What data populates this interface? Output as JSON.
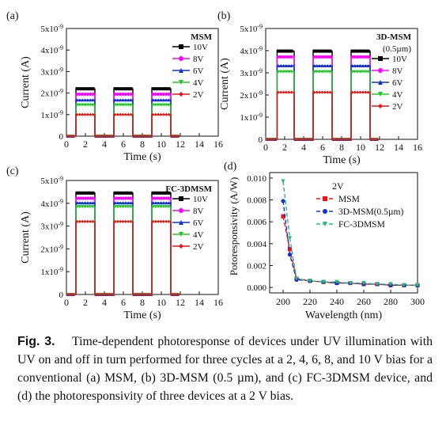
{
  "chart_data": [
    {
      "panel": "(a)",
      "type": "line",
      "title": "MSM",
      "xlabel": "Time (s)",
      "ylabel": "Current (A)",
      "xlim": [
        0,
        16
      ],
      "ylim": [
        0,
        5e-09
      ],
      "xticks": [
        "0",
        "2",
        "4",
        "6",
        "8",
        "10",
        "12",
        "14",
        "16"
      ],
      "yticks": [
        "0",
        "1x10-9",
        "2x10-9",
        "3x10-9",
        "4x10-9",
        "5x10-9"
      ],
      "on_intervals": [
        [
          1,
          3
        ],
        [
          5,
          7
        ],
        [
          9,
          11
        ]
      ],
      "legend_pos": "top-right",
      "series": [
        {
          "name": "10V",
          "color": "#000000",
          "marker": "square",
          "on_value": 2.2e-09,
          "off_value": 0
        },
        {
          "name": "8V",
          "color": "#ff00ff",
          "marker": "circle",
          "on_value": 1.95e-09,
          "off_value": 0
        },
        {
          "name": "6V",
          "color": "#1030d0",
          "marker": "triangle-up",
          "on_value": 1.68e-09,
          "off_value": 0
        },
        {
          "name": "4V",
          "color": "#22cc22",
          "marker": "triangle-down",
          "on_value": 1.45e-09,
          "off_value": 0
        },
        {
          "name": "2V",
          "color": "#ee1111",
          "marker": "diamond",
          "on_value": 1e-09,
          "off_value": 0
        }
      ]
    },
    {
      "panel": "(b)",
      "type": "line",
      "title": "3D-MSM",
      "subtitle": "(0.5µm)",
      "xlabel": "Time (s)",
      "ylabel": "Current (A)",
      "xlim": [
        0,
        16
      ],
      "ylim": [
        0,
        5e-09
      ],
      "xticks": [
        "0",
        "2",
        "4",
        "6",
        "8",
        "10",
        "12",
        "14",
        "16"
      ],
      "yticks": [
        "0",
        "1x10-9",
        "2x10-9",
        "3x10-9",
        "4x10-9",
        "5x10-9"
      ],
      "on_intervals": [
        [
          1.2,
          3
        ],
        [
          5,
          7
        ],
        [
          9,
          11
        ]
      ],
      "legend_pos": "top-right",
      "series": [
        {
          "name": "10V",
          "color": "#000000",
          "marker": "square",
          "on_value": 3.98e-09,
          "off_value": 0
        },
        {
          "name": "8V",
          "color": "#ff00ff",
          "marker": "circle",
          "on_value": 3.72e-09,
          "off_value": 0
        },
        {
          "name": "6V",
          "color": "#1030d0",
          "marker": "triangle-up",
          "on_value": 3.32e-09,
          "off_value": 0
        },
        {
          "name": "4V",
          "color": "#22cc22",
          "marker": "triangle-down",
          "on_value": 3.05e-09,
          "off_value": 0
        },
        {
          "name": "2V",
          "color": "#ee1111",
          "marker": "diamond",
          "on_value": 2.12e-09,
          "off_value": 0
        }
      ]
    },
    {
      "panel": "(c)",
      "type": "line",
      "title": "FC-3DMSM",
      "xlabel": "Time (s)",
      "ylabel": "Current (A)",
      "xlim": [
        0,
        16
      ],
      "ylim": [
        0,
        5e-09
      ],
      "xticks": [
        "0",
        "2",
        "4",
        "6",
        "8",
        "10",
        "12",
        "14",
        "16"
      ],
      "yticks": [
        "0",
        "1x10-9",
        "2x10-9",
        "3x10-9",
        "4x10-9",
        "5x10-9"
      ],
      "on_intervals": [
        [
          1,
          3
        ],
        [
          5,
          7
        ],
        [
          9,
          11
        ]
      ],
      "legend_pos": "top-right",
      "series": [
        {
          "name": "10V",
          "color": "#000000",
          "marker": "square",
          "on_value": 4.45e-09,
          "off_value": 0
        },
        {
          "name": "8V",
          "color": "#ff00ff",
          "marker": "circle",
          "on_value": 4.22e-09,
          "off_value": 0
        },
        {
          "name": "6V",
          "color": "#1030d0",
          "marker": "triangle-up",
          "on_value": 4.02e-09,
          "off_value": 0
        },
        {
          "name": "4V",
          "color": "#22cc22",
          "marker": "triangle-down",
          "on_value": 3.85e-09,
          "off_value": 0
        },
        {
          "name": "2V",
          "color": "#ee1111",
          "marker": "diamond",
          "on_value": 3.2e-09,
          "off_value": 0
        }
      ]
    },
    {
      "panel": "(d)",
      "type": "line",
      "title": "2V",
      "xlabel": "Wavelength (nm)",
      "ylabel": "Potoresponsivity (A/W)",
      "xlim": [
        190,
        300
      ],
      "ylim": [
        -0.0005,
        0.0105
      ],
      "xticks": [
        "200",
        "220",
        "240",
        "260",
        "280",
        "300"
      ],
      "yticks": [
        "0.000",
        "0.002",
        "0.004",
        "0.006",
        "0.008",
        "0.010"
      ],
      "legend_pos": "top-right",
      "series": [
        {
          "name": "MSM",
          "color": "#ee1111",
          "marker": "square",
          "x": [
            200,
            205,
            210,
            220,
            230,
            240,
            250,
            260,
            270,
            280,
            290,
            300
          ],
          "y": [
            0.0065,
            0.0035,
            0.0008,
            0.0006,
            0.0005,
            0.0004,
            0.0004,
            0.0003,
            0.0003,
            0.0002,
            0.0002,
            0.0002
          ]
        },
        {
          "name": "3D-MSM(0.5µm)",
          "color": "#1030d0",
          "marker": "circle",
          "x": [
            200,
            205,
            210,
            220,
            230,
            240,
            250,
            260,
            270,
            280,
            290,
            300
          ],
          "y": [
            0.0079,
            0.003,
            0.0007,
            0.0006,
            0.0005,
            0.0004,
            0.0004,
            0.0003,
            0.0003,
            0.0002,
            0.0002,
            0.0002
          ]
        },
        {
          "name": "FC-3DMSM",
          "color": "#2ab87a",
          "marker": "triangle-down",
          "x": [
            200,
            205,
            210,
            220,
            230,
            240,
            250,
            260,
            270,
            280,
            290,
            300
          ],
          "y": [
            0.0097,
            0.0045,
            0.0008,
            0.0006,
            0.0005,
            0.0005,
            0.0004,
            0.0004,
            0.0003,
            0.0003,
            0.0002,
            0.0002
          ]
        }
      ]
    }
  ],
  "caption": {
    "label": "Fig. 3.",
    "text": "Time-dependent photoresponse of devices under UV illumination with UV on and off in turn performed for three cycles at a 2, 4, 6, 8, and 10 V bias for a conventional (a) MSM, (b) 3D-MSM (0.5 µm), and (c) FC-3DMSM device, and (d) the photoresponsivity of three devices at a 2 V bias."
  }
}
